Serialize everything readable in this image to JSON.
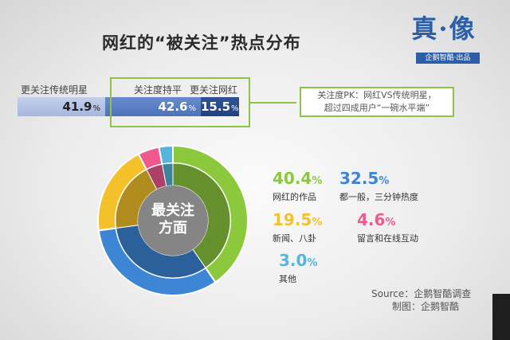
{
  "title": "网红的“被关注”热点分布",
  "logo": {
    "main": "真·像",
    "sub": "企鹅智酷·出品"
  },
  "bar": {
    "labels": [
      "更关注传统明星",
      "关注度持平",
      "更关注网红"
    ],
    "segments": [
      {
        "label": "更关注传统明星",
        "value": "41.9",
        "unit": "%",
        "color": "#a6b6de"
      },
      {
        "label": "关注度持平",
        "value": "42.6",
        "unit": "%",
        "color": "#4e72b9"
      },
      {
        "label": "更关注网红",
        "value": "15.5",
        "unit": "%",
        "color": "#20427f"
      }
    ]
  },
  "callout": {
    "line1": "关注度PK：网红VS传统明星，",
    "line2": "超过四成用户“一碗水平端”"
  },
  "chart_data": {
    "type": "pie",
    "center_label": [
      "最关注",
      "方面"
    ],
    "series": [
      {
        "label": "网红的作品",
        "value": 40.4,
        "color": "#8cc83c"
      },
      {
        "label": "都一般，三分钟热度",
        "value": 32.5,
        "color": "#3d86d6"
      },
      {
        "label": "新闻、八卦",
        "value": 19.5,
        "color": "#f5c12a"
      },
      {
        "label": "留言和在线互动",
        "value": 4.6,
        "color": "#ee5a8f"
      },
      {
        "label": "其他",
        "value": 3.0,
        "color": "#54b6dc"
      }
    ]
  },
  "legend": [
    {
      "value": "40.4",
      "unit": "%",
      "name": "网红的作品",
      "color": "#8cc83c"
    },
    {
      "value": "32.5",
      "unit": "%",
      "name": "都一般，三分钟热度",
      "color": "#3d86d6"
    },
    {
      "value": "19.5",
      "unit": "%",
      "name": "新闻、八卦",
      "color": "#f5c12a"
    },
    {
      "value": "4.6",
      "unit": "%",
      "name": "留言和在线互动",
      "color": "#ee5a8f"
    },
    {
      "value": "3.0",
      "unit": "%",
      "name": "其他",
      "color": "#54b6dc"
    }
  ],
  "source": "Source：企鹅智酷调查",
  "maker": "制图：企鹅智酷"
}
